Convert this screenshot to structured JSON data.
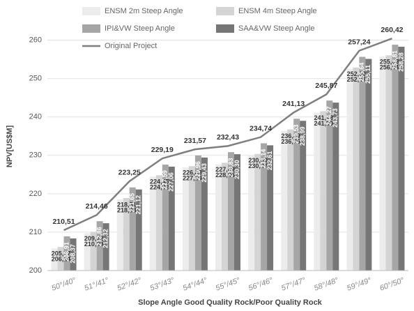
{
  "chart_data": {
    "type": "bar",
    "y_label": "NPV[US$M]",
    "x_label": "Slope Angle Good Quality Rock/Poor Quality Rock",
    "categories": [
      "50°/40°",
      "51°/41°",
      "52°/42°",
      "53°/43°",
      "54°/44°",
      "55°/45°",
      "56°/46°",
      "57°/47°",
      "58°/48°",
      "59°/49°",
      "60°/50°"
    ],
    "ylim": [
      200,
      265
    ],
    "yticks": [
      200,
      210,
      220,
      230,
      240,
      250,
      260
    ],
    "grid": true,
    "legend": "top",
    "series": [
      {
        "name": "ENSM 2m Steep Angle",
        "color": "#ececec",
        "values": [
          205.77,
          209.72,
          218.51,
          224.45,
          226.83,
          227.69,
          230.0,
          236.39,
          241.13,
          252.5,
          255.68
        ],
        "value_labels": [
          "205,77",
          "209,72",
          "218,51",
          "224,45",
          "226,83",
          "227,69",
          "230,00",
          "236,39",
          "241,13",
          "252,50",
          "255,68"
        ]
      },
      {
        "name": "ENSM 4m Steep Angle",
        "color": "#d4d4d4",
        "values": [
          206.14,
          210.09,
          218.88,
          224.82,
          227.19,
          228.06,
          230.37,
          236.76,
          241.5,
          252.87,
          256.04
        ],
        "value_labels": [
          "206,14",
          "210,09",
          "218,88",
          "224,82",
          "227,19",
          "228,06",
          "230,37",
          "236,76",
          "241,50",
          "252,87",
          "256,04"
        ]
      },
      {
        "name": "IPI&VW Steep Angle",
        "color": "#a6a6a6",
        "values": [
          208.91,
          212.86,
          221.65,
          227.59,
          229.96,
          230.83,
          233.14,
          239.53,
          244.27,
          255.64,
          258.81
        ],
        "value_labels": [
          "208,91",
          "212,86",
          "221,65",
          "227,59",
          "229,96",
          "230,83",
          "233,14",
          "239,53",
          "244,27",
          "255,64",
          "258,81"
        ]
      },
      {
        "name": "SAA&VW Steep Angle",
        "color": "#767676",
        "values": [
          208.37,
          212.32,
          221.12,
          227.06,
          229.43,
          230.3,
          232.61,
          238.99,
          243.73,
          255.11,
          258.28
        ],
        "value_labels": [
          "208,37",
          "212,32",
          "221,12",
          "227,06",
          "229,43",
          "230,30",
          "232,61",
          "238,99",
          "243,73",
          "255,11",
          "258,28"
        ]
      },
      {
        "name": "Original Project",
        "color": "#7f7f7f",
        "type": "line",
        "values": [
          210.51,
          214.46,
          223.25,
          229.19,
          231.57,
          232.43,
          234.74,
          241.13,
          245.87,
          257.24,
          260.42
        ],
        "value_labels": [
          "210,51",
          "214,46",
          "223,25",
          "229,19",
          "231,57",
          "232,43",
          "234,74",
          "241,13",
          "245,87",
          "257,24",
          "260,42"
        ]
      }
    ]
  }
}
